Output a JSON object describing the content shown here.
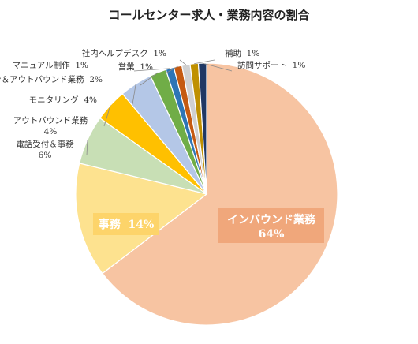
{
  "chart_data": {
    "type": "pie",
    "title": "コールセンター求人・業務内容の割合",
    "start_angle_deg": 0,
    "direction": "clockwise",
    "slices": [
      {
        "label": "インバウンド業務",
        "value": 64,
        "display": "64%",
        "color": "#f7c4a2"
      },
      {
        "label": "事務",
        "value": 14,
        "display": "14%",
        "color": "#fde28f"
      },
      {
        "label": "電話受付＆事務",
        "value": 6,
        "display": "6%",
        "color": "#c8dfb5"
      },
      {
        "label": "アウトバウンド業務",
        "value": 4,
        "display": "4%",
        "color": "#ffc000"
      },
      {
        "label": "モニタリング",
        "value": 4,
        "display": "4%",
        "color": "#b4c7e7"
      },
      {
        "label": "イン＆アウトバウンド業務",
        "value": 2,
        "display": "2%",
        "color": "#70ad47"
      },
      {
        "label": "マニュアル制作",
        "value": 1,
        "display": "1%",
        "color": "#2e75b6"
      },
      {
        "label": "営業",
        "value": 1,
        "display": "1%",
        "color": "#c55a11"
      },
      {
        "label": "社内ヘルプデスク",
        "value": 1,
        "display": "1%",
        "color": "#d0d0d0"
      },
      {
        "label": "補助",
        "value": 1,
        "display": "1%",
        "color": "#bf9000"
      },
      {
        "label": "訪問サポート",
        "value": 1,
        "display": "1%",
        "color": "#203864"
      }
    ]
  }
}
